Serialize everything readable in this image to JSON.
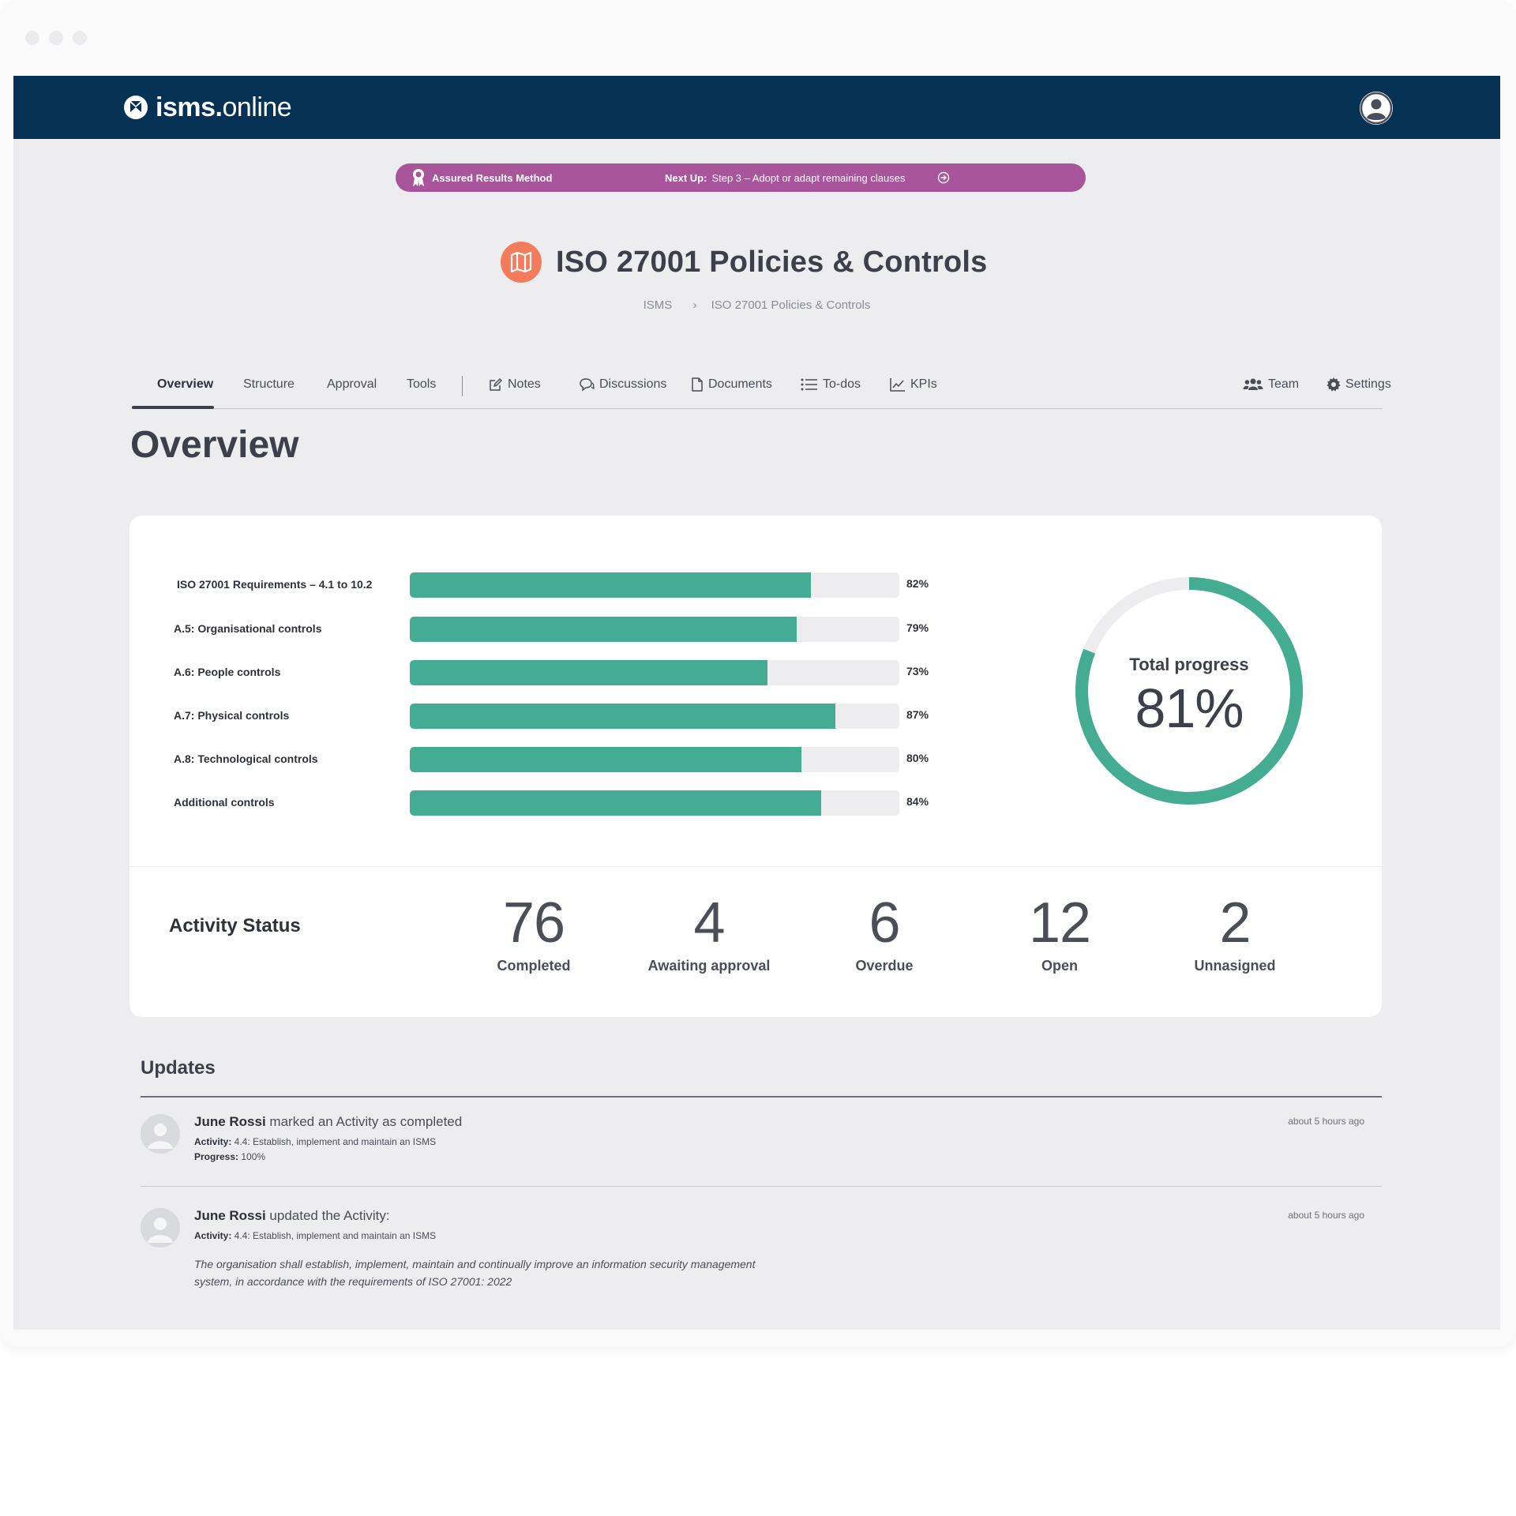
{
  "app": {
    "logo_bold": "isms",
    "logo_dot": ".",
    "logo_light": "online"
  },
  "banner": {
    "method_label": "Assured Results Method",
    "next_up_label": "Next Up:",
    "next_up_text": "Step 3 – Adopt or adapt remaining clauses"
  },
  "page": {
    "title": "ISO 27001 Policies & Controls",
    "breadcrumb": [
      "ISMS",
      "ISO 27001 Policies & Controls"
    ]
  },
  "tabs": {
    "left": [
      "Overview",
      "Structure",
      "Approval",
      "Tools"
    ],
    "tools": [
      {
        "label": "Notes",
        "icon": "edit-icon"
      },
      {
        "label": "Discussions",
        "icon": "chat-icon"
      },
      {
        "label": "Documents",
        "icon": "document-icon"
      },
      {
        "label": "To-dos",
        "icon": "list-icon"
      },
      {
        "label": "KPIs",
        "icon": "chart-icon"
      }
    ],
    "right": [
      {
        "label": "Team",
        "icon": "team-icon"
      },
      {
        "label": "Settings",
        "icon": "gear-icon"
      }
    ],
    "active": "Overview"
  },
  "overview": {
    "title": "Overview",
    "progress_rows": [
      {
        "label": "ISO 27001 Requirements – 4.1 to 10.2",
        "value": 82,
        "display": "82%"
      },
      {
        "label": "A.5: Organisational controls",
        "value": 79,
        "display": "79%"
      },
      {
        "label": "A.6: People controls",
        "value": 73,
        "display": "73%"
      },
      {
        "label": "A.7: Physical controls",
        "value": 87,
        "display": "87%"
      },
      {
        "label": "A.8: Technological controls",
        "value": 80,
        "display": "80%"
      },
      {
        "label": "Additional controls",
        "value": 84,
        "display": "84%"
      }
    ],
    "total": {
      "label": "Total progress",
      "value": 81,
      "display": "81%"
    },
    "accent": "#43ac93",
    "activity": {
      "title": "Activity Status",
      "stats": [
        {
          "num": "76",
          "label": "Completed"
        },
        {
          "num": "4",
          "label": "Awaiting approval"
        },
        {
          "num": "6",
          "label": "Overdue"
        },
        {
          "num": "12",
          "label": "Open"
        },
        {
          "num": "2",
          "label": "Unnasigned"
        }
      ]
    }
  },
  "updates": {
    "title": "Updates",
    "items": [
      {
        "user": "June Rossi",
        "action": " marked an Activity as completed",
        "time": "about 5 hours ago",
        "activity_label": "Activity:",
        "activity_value": " 4.4: Establish, implement and maintain an ISMS",
        "progress_label": "Progress:",
        "progress_value": " 100%"
      },
      {
        "user": "June Rossi",
        "action": " updated the Activity:",
        "time": "about 5 hours ago",
        "activity_label": "Activity:",
        "activity_value": " 4.4: Establish, implement and maintain an ISMS",
        "description": "The organisation shall establish, implement, maintain and continually improve an information security management system, in accordance with the requirements of ISO 27001: 2022"
      }
    ]
  }
}
